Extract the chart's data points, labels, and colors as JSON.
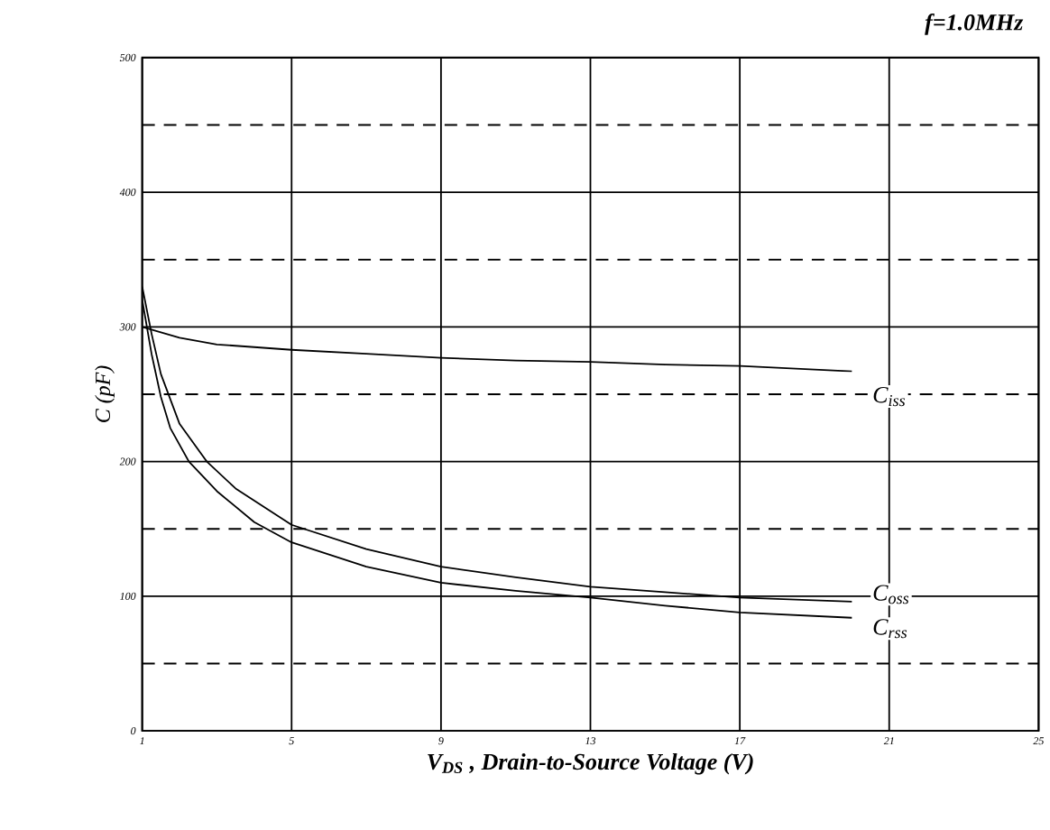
{
  "chart_data": {
    "type": "line",
    "title": "f=1.0MHz",
    "xlabel": "V$_{DS}$ , Drain-to-Source Voltage (V)",
    "ylabel": "C (pF)",
    "xlim": [
      1,
      25
    ],
    "xticks": [
      1,
      5,
      9,
      13,
      17,
      21,
      25
    ],
    "ylim": [
      0,
      500
    ],
    "yticks": [
      0,
      100,
      200,
      300,
      400,
      500
    ],
    "grid": true,
    "marker": "none",
    "line_style": "solid",
    "ref_lines": [
      {
        "axis": "y",
        "value": 50,
        "line_style": "dashed",
        "color": "#000000"
      },
      {
        "axis": "y",
        "value": 150,
        "line_style": "dashed",
        "color": "#000000"
      },
      {
        "axis": "y",
        "value": 250,
        "line_style": "dashed",
        "color": "#000000"
      },
      {
        "axis": "y",
        "value": 350,
        "line_style": "dashed",
        "color": "#000000"
      },
      {
        "axis": "y",
        "value": 450,
        "line_style": "dashed",
        "color": "#000000"
      }
    ],
    "series": [
      {
        "name": "C$_{iss}$",
        "color": "#000000",
        "x": [
          1,
          2,
          3,
          5,
          7,
          9,
          11,
          13,
          15,
          17,
          20
        ],
        "values": [
          300,
          292,
          287,
          283,
          280,
          277,
          275,
          274,
          272,
          271,
          267
        ]
      },
      {
        "name": "C$_{oss}$",
        "color": "#000000",
        "x": [
          1,
          1.25,
          1.5,
          2,
          2.73,
          3.5,
          5,
          7,
          9,
          11,
          13,
          15,
          17,
          20
        ],
        "values": [
          330,
          295,
          265,
          228,
          200,
          180,
          153,
          135,
          122,
          114,
          107,
          103,
          99,
          96
        ]
      },
      {
        "name": "C$_{rss}$",
        "color": "#000000",
        "x": [
          1,
          1.25,
          1.5,
          1.75,
          2.25,
          3,
          4,
          5,
          7,
          9,
          11,
          13,
          15,
          17,
          20
        ],
        "values": [
          320,
          280,
          248,
          225,
          200,
          178,
          155,
          140,
          122,
          110,
          104,
          99,
          93,
          88,
          84
        ]
      }
    ]
  }
}
